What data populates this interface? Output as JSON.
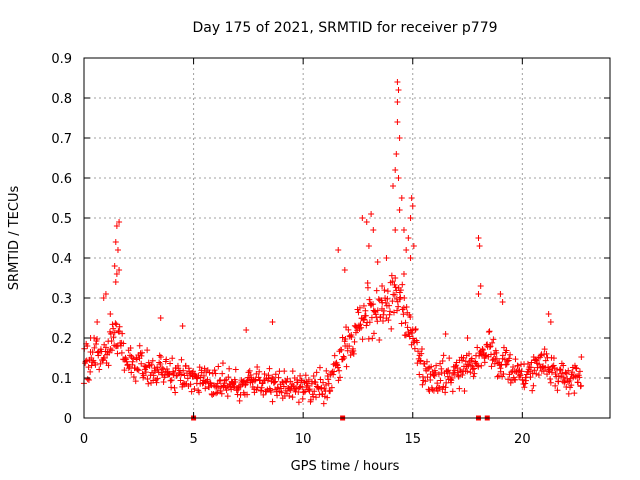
{
  "chart_data": {
    "type": "scatter",
    "title": "Day 175 of 2021, SRMTID for receiver p779",
    "xlabel": "GPS time / hours",
    "ylabel": "SRMTID / TECUs",
    "xlim": [
      0,
      24
    ],
    "ylim": [
      0,
      0.9
    ],
    "xticks": [
      0,
      5,
      10,
      15,
      20
    ],
    "yticks": [
      0,
      0.1,
      0.2,
      0.3,
      0.4,
      0.5,
      0.6,
      0.7,
      0.8,
      0.9
    ],
    "xtick_labels": [
      "0",
      "5",
      "10",
      "15",
      "20"
    ],
    "ytick_labels": [
      "0",
      "0.1",
      "0.2",
      "0.3",
      "0.4",
      "0.5",
      "0.6",
      "0.7",
      "0.8",
      "0.9"
    ],
    "grid": true,
    "marker": "plus",
    "color": "#ff0000",
    "x_range_of_data": [
      0,
      22.7
    ],
    "trend": [
      {
        "x": 0.0,
        "y": 0.14
      },
      {
        "x": 0.5,
        "y": 0.15
      },
      {
        "x": 1.0,
        "y": 0.17
      },
      {
        "x": 1.5,
        "y": 0.2
      },
      {
        "x": 2.0,
        "y": 0.14
      },
      {
        "x": 3.0,
        "y": 0.12
      },
      {
        "x": 4.0,
        "y": 0.11
      },
      {
        "x": 5.0,
        "y": 0.1
      },
      {
        "x": 6.0,
        "y": 0.09
      },
      {
        "x": 7.0,
        "y": 0.08
      },
      {
        "x": 8.0,
        "y": 0.09
      },
      {
        "x": 9.0,
        "y": 0.08
      },
      {
        "x": 10.0,
        "y": 0.08
      },
      {
        "x": 11.0,
        "y": 0.08
      },
      {
        "x": 11.5,
        "y": 0.12
      },
      {
        "x": 12.0,
        "y": 0.18
      },
      {
        "x": 12.5,
        "y": 0.22
      },
      {
        "x": 13.0,
        "y": 0.26
      },
      {
        "x": 13.5,
        "y": 0.26
      },
      {
        "x": 14.0,
        "y": 0.28
      },
      {
        "x": 14.5,
        "y": 0.3
      },
      {
        "x": 15.0,
        "y": 0.2
      },
      {
        "x": 15.5,
        "y": 0.12
      },
      {
        "x": 16.0,
        "y": 0.1
      },
      {
        "x": 17.0,
        "y": 0.11
      },
      {
        "x": 18.0,
        "y": 0.14
      },
      {
        "x": 18.5,
        "y": 0.18
      },
      {
        "x": 19.0,
        "y": 0.13
      },
      {
        "x": 20.0,
        "y": 0.11
      },
      {
        "x": 21.0,
        "y": 0.13
      },
      {
        "x": 22.0,
        "y": 0.1
      },
      {
        "x": 22.7,
        "y": 0.11
      }
    ],
    "highlights": [
      {
        "x": 1.5,
        "y": 0.48
      },
      {
        "x": 1.6,
        "y": 0.49
      },
      {
        "x": 1.45,
        "y": 0.44
      },
      {
        "x": 1.55,
        "y": 0.42
      },
      {
        "x": 1.4,
        "y": 0.38
      },
      {
        "x": 1.5,
        "y": 0.36
      },
      {
        "x": 1.6,
        "y": 0.37
      },
      {
        "x": 1.45,
        "y": 0.34
      },
      {
        "x": 0.9,
        "y": 0.3
      },
      {
        "x": 1.0,
        "y": 0.31
      },
      {
        "x": 11.6,
        "y": 0.42
      },
      {
        "x": 11.9,
        "y": 0.37
      },
      {
        "x": 12.7,
        "y": 0.5
      },
      {
        "x": 12.9,
        "y": 0.49
      },
      {
        "x": 13.1,
        "y": 0.51
      },
      {
        "x": 13.2,
        "y": 0.47
      },
      {
        "x": 13.0,
        "y": 0.43
      },
      {
        "x": 13.4,
        "y": 0.39
      },
      {
        "x": 13.6,
        "y": 0.33
      },
      {
        "x": 14.3,
        "y": 0.84
      },
      {
        "x": 14.35,
        "y": 0.82
      },
      {
        "x": 14.3,
        "y": 0.79
      },
      {
        "x": 14.3,
        "y": 0.74
      },
      {
        "x": 14.4,
        "y": 0.7
      },
      {
        "x": 14.25,
        "y": 0.66
      },
      {
        "x": 14.2,
        "y": 0.62
      },
      {
        "x": 14.35,
        "y": 0.6
      },
      {
        "x": 14.1,
        "y": 0.58
      },
      {
        "x": 14.5,
        "y": 0.55
      },
      {
        "x": 14.4,
        "y": 0.52
      },
      {
        "x": 14.6,
        "y": 0.47
      },
      {
        "x": 14.8,
        "y": 0.45
      },
      {
        "x": 14.2,
        "y": 0.47
      },
      {
        "x": 14.9,
        "y": 0.5
      },
      {
        "x": 14.7,
        "y": 0.42
      },
      {
        "x": 14.95,
        "y": 0.55
      },
      {
        "x": 15.0,
        "y": 0.53
      },
      {
        "x": 15.05,
        "y": 0.43
      },
      {
        "x": 14.9,
        "y": 0.4
      },
      {
        "x": 14.6,
        "y": 0.36
      },
      {
        "x": 14.2,
        "y": 0.35
      },
      {
        "x": 13.8,
        "y": 0.4
      },
      {
        "x": 18.0,
        "y": 0.45
      },
      {
        "x": 18.05,
        "y": 0.43
      },
      {
        "x": 18.0,
        "y": 0.31
      },
      {
        "x": 18.1,
        "y": 0.33
      },
      {
        "x": 19.0,
        "y": 0.31
      },
      {
        "x": 19.1,
        "y": 0.29
      },
      {
        "x": 21.2,
        "y": 0.26
      },
      {
        "x": 21.3,
        "y": 0.24
      },
      {
        "x": 7.4,
        "y": 0.22
      },
      {
        "x": 8.6,
        "y": 0.24
      },
      {
        "x": 4.5,
        "y": 0.23
      },
      {
        "x": 3.5,
        "y": 0.25
      },
      {
        "x": 0.3,
        "y": 0.2
      },
      {
        "x": 0.6,
        "y": 0.24
      },
      {
        "x": 1.2,
        "y": 0.26
      },
      {
        "x": 16.5,
        "y": 0.21
      },
      {
        "x": 17.5,
        "y": 0.2
      }
    ],
    "bottom_markers": [
      5.0,
      11.8,
      18.0,
      18.4
    ],
    "noise_seed": 175,
    "points_per_hour": 40,
    "scatter_spread": 0.045
  }
}
